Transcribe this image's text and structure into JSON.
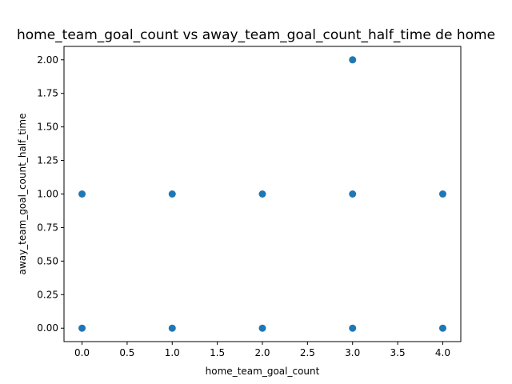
{
  "chart_data": {
    "type": "scatter",
    "title": "home_team_goal_count vs away_team_goal_count_half_time de home",
    "xlabel": "home_team_goal_count",
    "ylabel": "away_team_goal_count_half_time",
    "xlim": [
      -0.2,
      4.2
    ],
    "ylim": [
      -0.1,
      2.1
    ],
    "xticks": [
      0.0,
      0.5,
      1.0,
      1.5,
      2.0,
      2.5,
      3.0,
      3.5,
      4.0
    ],
    "xtick_labels": [
      "0.0",
      "0.5",
      "1.0",
      "1.5",
      "2.0",
      "2.5",
      "3.0",
      "3.5",
      "4.0"
    ],
    "yticks": [
      0.0,
      0.25,
      0.5,
      0.75,
      1.0,
      1.25,
      1.5,
      1.75,
      2.0
    ],
    "ytick_labels": [
      "0.00",
      "0.25",
      "0.50",
      "0.75",
      "1.00",
      "1.25",
      "1.50",
      "1.75",
      "2.00"
    ],
    "grid": false,
    "color": "#1f77b4",
    "points": [
      {
        "x": 0,
        "y": 0
      },
      {
        "x": 0,
        "y": 1
      },
      {
        "x": 1,
        "y": 0
      },
      {
        "x": 1,
        "y": 1
      },
      {
        "x": 2,
        "y": 0
      },
      {
        "x": 2,
        "y": 1
      },
      {
        "x": 3,
        "y": 0
      },
      {
        "x": 3,
        "y": 1
      },
      {
        "x": 3,
        "y": 2
      },
      {
        "x": 4,
        "y": 0
      },
      {
        "x": 4,
        "y": 1
      }
    ]
  }
}
